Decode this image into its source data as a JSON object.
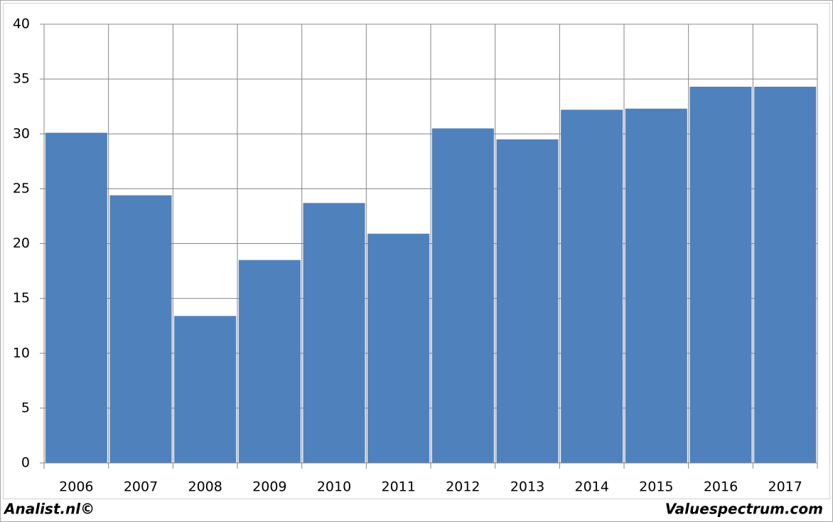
{
  "chart_data": {
    "type": "bar",
    "categories": [
      "2006",
      "2007",
      "2008",
      "2009",
      "2010",
      "2011",
      "2012",
      "2013",
      "2014",
      "2015",
      "2016",
      "2017"
    ],
    "values": [
      30.1,
      24.4,
      13.4,
      18.5,
      23.7,
      20.9,
      30.5,
      29.5,
      32.2,
      32.3,
      34.3,
      34.3
    ],
    "color": "#4f81bd",
    "ylim": [
      0,
      40
    ],
    "yticks": [
      0,
      5,
      10,
      15,
      20,
      25,
      30,
      35,
      40
    ],
    "grid": true
  },
  "footer": {
    "left": "Analist.nl©",
    "right": "Valuespectrum.com"
  }
}
